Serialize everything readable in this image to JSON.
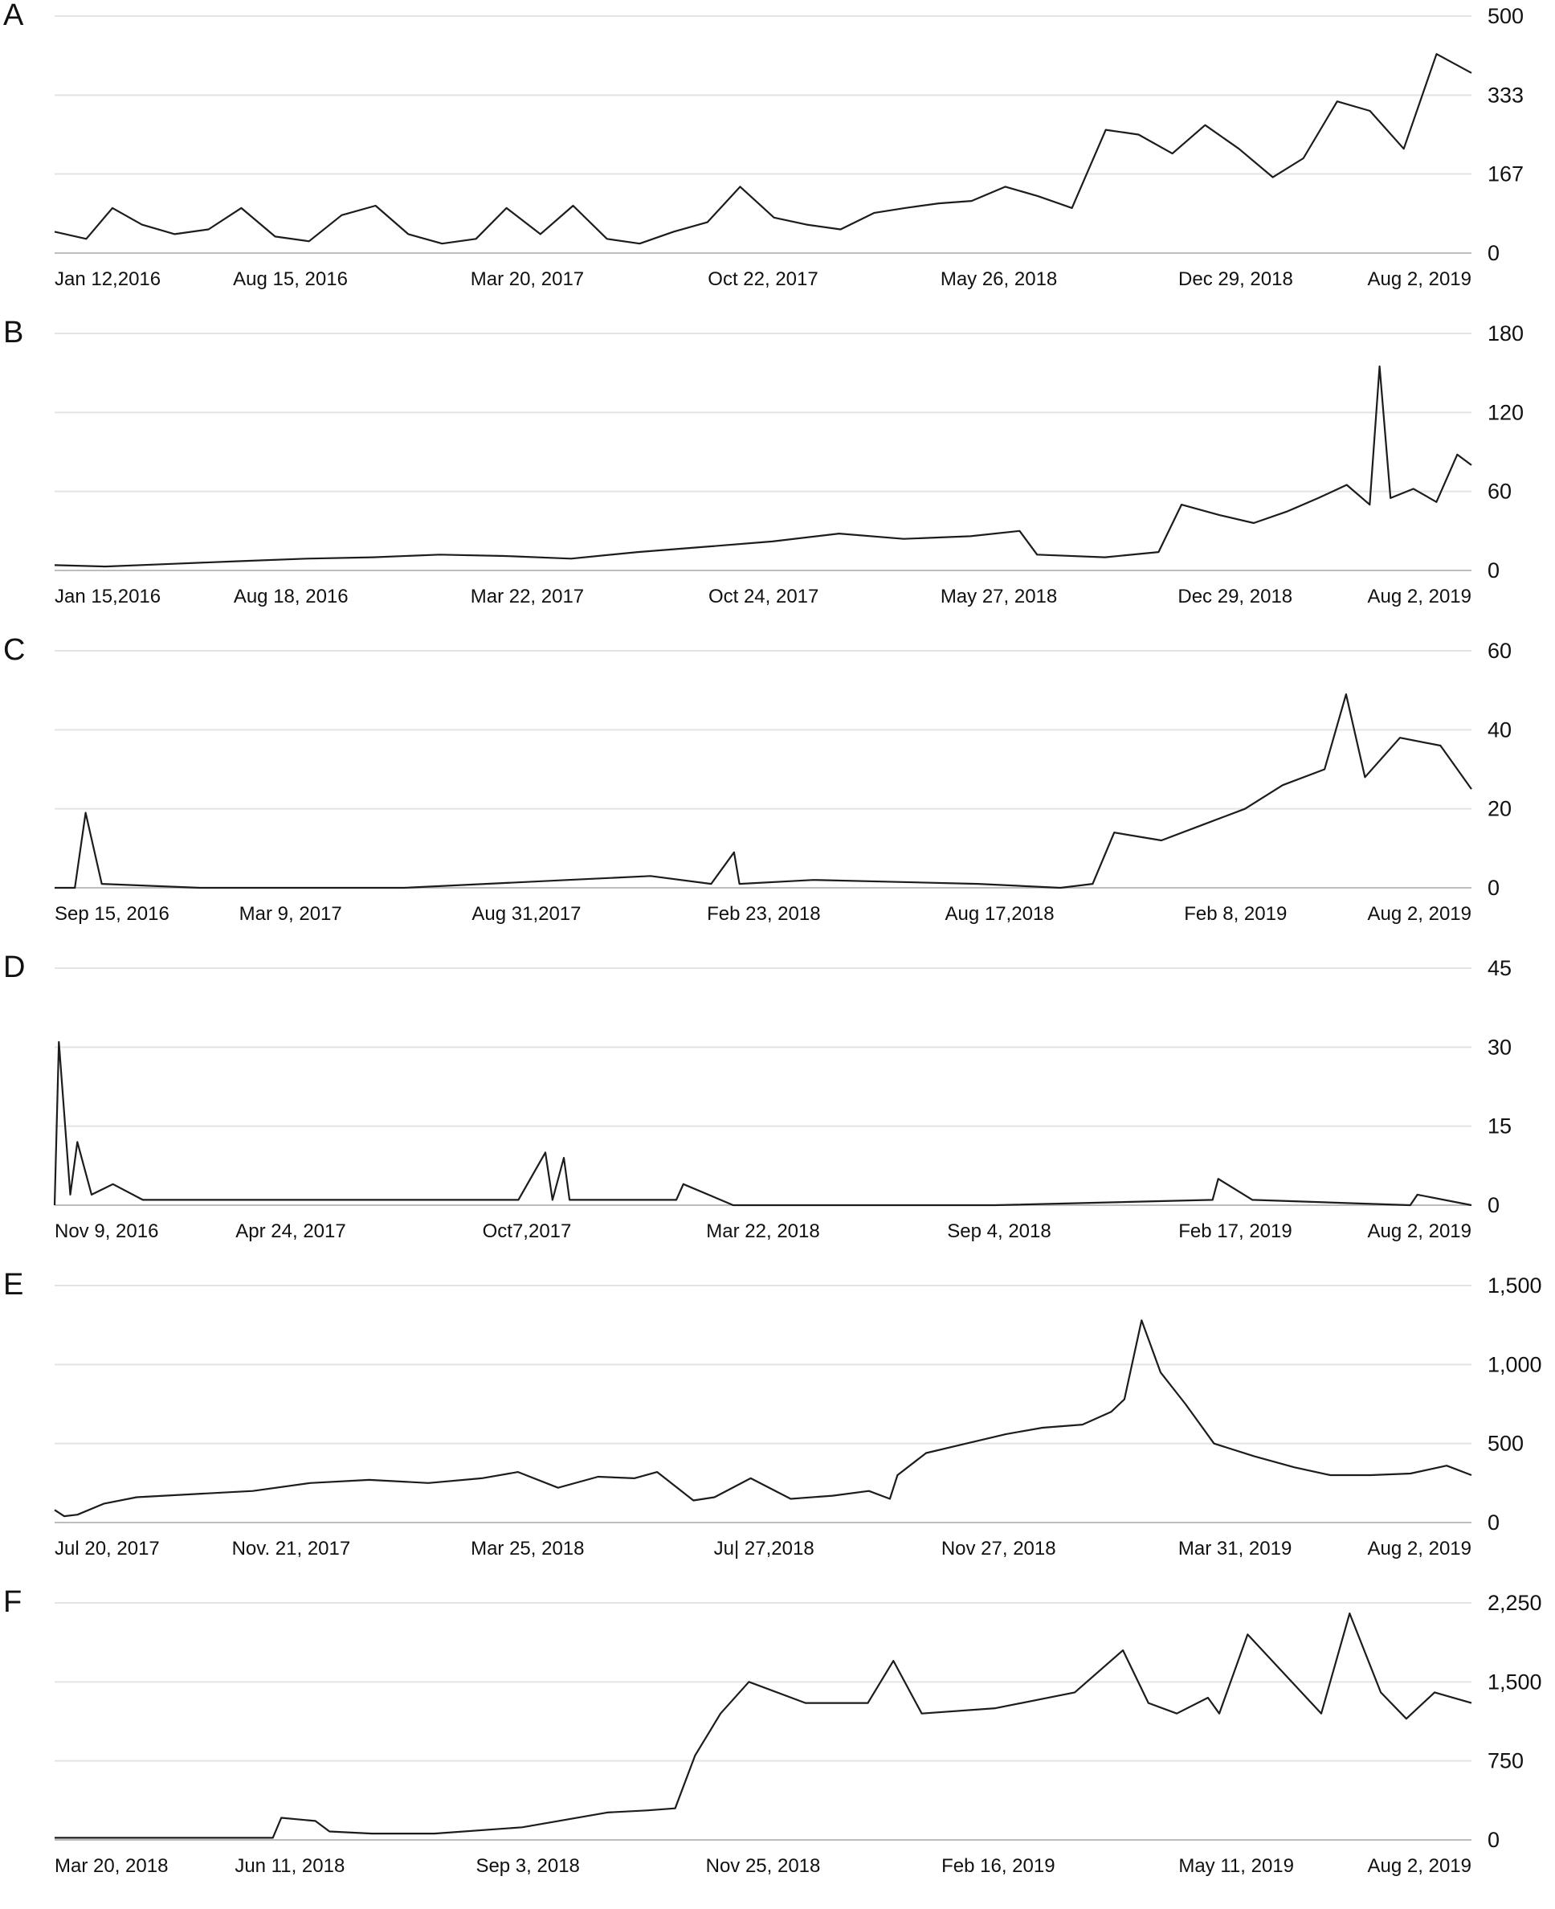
{
  "chart_data": [
    {
      "panel": "A",
      "type": "line",
      "ylim": [
        0,
        500
      ],
      "yticks": [
        0,
        167,
        333,
        500
      ],
      "ytick_labels": [
        "0",
        "167",
        "333",
        "500"
      ],
      "xlim": [
        "2016-01-12",
        "2019-08-02"
      ],
      "xtick_labels": [
        "Jan 12,2016",
        "Aug 15, 2016",
        "Mar 20, 2017",
        "Oct 22, 2017",
        "May 26, 2018",
        "Dec 29, 2018",
        "Aug 2, 2019"
      ],
      "xtick_dates": [
        "2016-01-12",
        "2016-08-15",
        "2017-03-20",
        "2017-10-22",
        "2018-05-26",
        "2018-12-29",
        "2019-08-02"
      ],
      "grid": true,
      "series": [
        {
          "x": [
            "2016-01-12",
            "2016-02-10",
            "2016-03-05",
            "2016-04-01",
            "2016-05-01",
            "2016-06-01",
            "2016-07-01",
            "2016-08-01",
            "2016-09-01",
            "2016-10-01",
            "2016-11-01",
            "2016-12-01",
            "2017-01-01",
            "2017-02-01",
            "2017-03-01",
            "2017-04-01",
            "2017-05-01",
            "2017-06-01",
            "2017-07-01",
            "2017-08-01",
            "2017-09-01",
            "2017-10-01",
            "2017-11-01",
            "2017-12-01",
            "2018-01-01",
            "2018-02-01",
            "2018-03-01",
            "2018-04-01",
            "2018-05-01",
            "2018-06-01",
            "2018-07-01",
            "2018-08-01",
            "2018-09-01",
            "2018-10-01",
            "2018-11-01",
            "2018-12-01",
            "2019-01-01",
            "2019-02-01",
            "2019-03-01",
            "2019-04-01",
            "2019-05-01",
            "2019-06-01",
            "2019-07-01",
            "2019-08-02"
          ],
          "y": [
            45,
            30,
            95,
            60,
            40,
            50,
            95,
            35,
            25,
            80,
            100,
            40,
            20,
            30,
            95,
            40,
            100,
            30,
            20,
            45,
            65,
            140,
            75,
            60,
            50,
            85,
            95,
            105,
            110,
            140,
            120,
            95,
            260,
            250,
            210,
            270,
            220,
            160,
            200,
            320,
            300,
            220,
            420,
            380
          ]
        }
      ]
    },
    {
      "panel": "B",
      "type": "line",
      "ylim": [
        0,
        180
      ],
      "yticks": [
        0,
        60,
        120,
        180
      ],
      "ytick_labels": [
        "0",
        "60",
        "120",
        "180"
      ],
      "xlim": [
        "2016-01-15",
        "2019-08-02"
      ],
      "xtick_labels": [
        "Jan 15,2016",
        "Aug 18, 2016",
        "Mar 22, 2017",
        "Oct 24, 2017",
        "May 27, 2018",
        "Dec 29, 2018",
        "Aug 2, 2019"
      ],
      "xtick_dates": [
        "2016-01-15",
        "2016-08-18",
        "2017-03-22",
        "2017-10-24",
        "2018-05-27",
        "2018-12-29",
        "2019-08-02"
      ],
      "grid": true,
      "series": [
        {
          "x": [
            "2016-01-15",
            "2016-03-01",
            "2016-05-01",
            "2016-07-01",
            "2016-09-01",
            "2016-11-01",
            "2017-01-01",
            "2017-03-01",
            "2017-05-01",
            "2017-07-01",
            "2017-09-01",
            "2017-11-01",
            "2018-01-01",
            "2018-03-01",
            "2018-05-01",
            "2018-06-15",
            "2018-07-01",
            "2018-09-01",
            "2018-10-20",
            "2018-11-10",
            "2018-12-15",
            "2019-01-15",
            "2019-02-15",
            "2019-03-15",
            "2019-04-10",
            "2019-05-01",
            "2019-05-10",
            "2019-05-20",
            "2019-06-10",
            "2019-07-01",
            "2019-07-20",
            "2019-08-02"
          ],
          "y": [
            4,
            3,
            5,
            7,
            9,
            10,
            12,
            11,
            9,
            14,
            18,
            22,
            28,
            24,
            26,
            30,
            12,
            10,
            14,
            50,
            42,
            36,
            45,
            55,
            65,
            50,
            155,
            55,
            62,
            52,
            88,
            80
          ]
        }
      ]
    },
    {
      "panel": "C",
      "type": "line",
      "ylim": [
        0,
        60
      ],
      "yticks": [
        0,
        20,
        40,
        60
      ],
      "ytick_labels": [
        "0",
        "20",
        "40",
        "60"
      ],
      "xlim": [
        "2016-09-15",
        "2019-08-02"
      ],
      "xtick_labels": [
        "Sep 15, 2016",
        "Mar 9, 2017",
        "Aug 31,2017",
        "Feb 23, 2018",
        "Aug 17,2018",
        "Feb 8, 2019",
        "Aug 2, 2019"
      ],
      "xtick_dates": [
        "2016-09-15",
        "2017-03-09",
        "2017-08-31",
        "2018-02-23",
        "2018-08-17",
        "2019-02-08",
        "2019-08-02"
      ],
      "grid": true,
      "series": [
        {
          "x": [
            "2016-09-15",
            "2016-09-30",
            "2016-10-08",
            "2016-10-20",
            "2017-01-01",
            "2017-06-01",
            "2017-10-01",
            "2017-12-01",
            "2018-01-15",
            "2018-02-01",
            "2018-02-05",
            "2018-04-01",
            "2018-08-01",
            "2018-10-01",
            "2018-10-25",
            "2018-11-10",
            "2018-12-15",
            "2019-01-15",
            "2019-02-15",
            "2019-03-15",
            "2019-04-15",
            "2019-05-01",
            "2019-05-15",
            "2019-06-10",
            "2019-07-10",
            "2019-08-02"
          ],
          "y": [
            0,
            0,
            19,
            1,
            0,
            0,
            2,
            3,
            1,
            9,
            1,
            2,
            1,
            0,
            1,
            14,
            12,
            16,
            20,
            26,
            30,
            49,
            28,
            38,
            36,
            25
          ]
        }
      ]
    },
    {
      "panel": "D",
      "type": "line",
      "ylim": [
        0,
        45
      ],
      "yticks": [
        0,
        15,
        30,
        45
      ],
      "ytick_labels": [
        "0",
        "15",
        "30",
        "45"
      ],
      "xlim": [
        "2016-11-09",
        "2019-08-02"
      ],
      "xtick_labels": [
        "Nov 9, 2016",
        "Apr 24, 2017",
        "Oct7,2017",
        "Mar 22, 2018",
        "Sep 4, 2018",
        "Feb 17, 2019",
        "Aug 2, 2019"
      ],
      "xtick_dates": [
        "2016-11-09",
        "2017-04-24",
        "2017-10-07",
        "2018-03-22",
        "2018-09-04",
        "2019-02-17",
        "2019-08-02"
      ],
      "grid": true,
      "series": [
        {
          "x": [
            "2016-11-09",
            "2016-11-12",
            "2016-11-20",
            "2016-11-25",
            "2016-12-05",
            "2016-12-20",
            "2017-01-10",
            "2017-04-01",
            "2017-10-01",
            "2017-10-20",
            "2017-10-25",
            "2017-11-02",
            "2017-11-06",
            "2017-12-01",
            "2018-01-20",
            "2018-01-25",
            "2018-03-01",
            "2018-09-01",
            "2019-02-01",
            "2019-02-05",
            "2019-03-01",
            "2019-06-20",
            "2019-06-25",
            "2019-08-02"
          ],
          "y": [
            0,
            31,
            2,
            12,
            2,
            4,
            1,
            1,
            1,
            10,
            1,
            9,
            1,
            1,
            1,
            4,
            0,
            0,
            1,
            5,
            1,
            0,
            2,
            0
          ]
        }
      ]
    },
    {
      "panel": "E",
      "type": "line",
      "ylim": [
        0,
        1500
      ],
      "yticks": [
        0,
        500,
        1000,
        1500
      ],
      "ytick_labels": [
        "0",
        "500",
        "1,000",
        "1,500"
      ],
      "xlim": [
        "2017-07-20",
        "2019-08-02"
      ],
      "xtick_labels": [
        "Jul 20, 2017",
        "Nov. 21, 2017",
        "Mar 25, 2018",
        "Ju| 27,2018",
        "Nov 27, 2018",
        "Mar 31, 2019",
        "Aug 2, 2019"
      ],
      "xtick_dates": [
        "2017-07-20",
        "2017-11-21",
        "2018-03-25",
        "2018-07-27",
        "2018-11-27",
        "2019-03-31",
        "2019-08-02"
      ],
      "grid": true,
      "series": [
        {
          "x": [
            "2017-07-20",
            "2017-07-25",
            "2017-08-01",
            "2017-08-15",
            "2017-09-01",
            "2017-10-01",
            "2017-11-01",
            "2017-12-01",
            "2018-01-01",
            "2018-02-01",
            "2018-03-01",
            "2018-03-20",
            "2018-04-10",
            "2018-05-01",
            "2018-05-20",
            "2018-06-01",
            "2018-06-20",
            "2018-07-01",
            "2018-07-20",
            "2018-08-10",
            "2018-09-01",
            "2018-09-20",
            "2018-10-01",
            "2018-10-05",
            "2018-10-20",
            "2018-11-10",
            "2018-12-01",
            "2018-12-20",
            "2019-01-10",
            "2019-01-25",
            "2019-02-01",
            "2019-02-10",
            "2019-02-20",
            "2019-03-05",
            "2019-03-20",
            "2019-04-10",
            "2019-05-01",
            "2019-05-20",
            "2019-06-10",
            "2019-07-01",
            "2019-07-20",
            "2019-08-02"
          ],
          "y": [
            80,
            40,
            50,
            120,
            160,
            180,
            200,
            250,
            270,
            250,
            280,
            320,
            220,
            290,
            280,
            320,
            140,
            160,
            280,
            150,
            170,
            200,
            150,
            300,
            440,
            500,
            560,
            600,
            620,
            700,
            780,
            1280,
            950,
            750,
            500,
            420,
            350,
            300,
            300,
            310,
            360,
            300
          ]
        }
      ]
    },
    {
      "panel": "F",
      "type": "line",
      "ylim": [
        0,
        2250
      ],
      "yticks": [
        0,
        750,
        1500,
        2250
      ],
      "ytick_labels": [
        "0",
        "750",
        "1,500",
        "2,250"
      ],
      "xlim": [
        "2018-03-20",
        "2019-08-02"
      ],
      "xtick_labels": [
        "Mar 20, 2018",
        "Jun 11, 2018",
        "Sep 3, 2018",
        "Nov 25, 2018",
        "Feb 16, 2019",
        "May 11, 2019",
        "Aug 2, 2019"
      ],
      "xtick_dates": [
        "2018-03-20",
        "2018-06-11",
        "2018-09-03",
        "2018-11-25",
        "2019-02-16",
        "2019-05-11",
        "2019-08-02"
      ],
      "grid": true,
      "series": [
        {
          "x": [
            "2018-03-20",
            "2018-05-20",
            "2018-06-05",
            "2018-06-08",
            "2018-06-20",
            "2018-06-25",
            "2018-07-10",
            "2018-08-01",
            "2018-09-01",
            "2018-10-01",
            "2018-10-15",
            "2018-10-25",
            "2018-11-01",
            "2018-11-10",
            "2018-11-20",
            "2018-12-10",
            "2019-01-01",
            "2019-01-10",
            "2019-01-20",
            "2019-02-15",
            "2019-03-15",
            "2019-04-01",
            "2019-04-10",
            "2019-04-20",
            "2019-05-01",
            "2019-05-05",
            "2019-05-15",
            "2019-06-10",
            "2019-06-20",
            "2019-07-01",
            "2019-07-10",
            "2019-07-20",
            "2019-08-02"
          ],
          "y": [
            20,
            20,
            20,
            210,
            180,
            80,
            60,
            60,
            120,
            260,
            280,
            300,
            800,
            1200,
            1500,
            1300,
            1300,
            1700,
            1200,
            1250,
            1400,
            1800,
            1300,
            1200,
            1350,
            1200,
            1950,
            1200,
            2150,
            1400,
            1150,
            1400,
            1300
          ]
        }
      ]
    }
  ]
}
